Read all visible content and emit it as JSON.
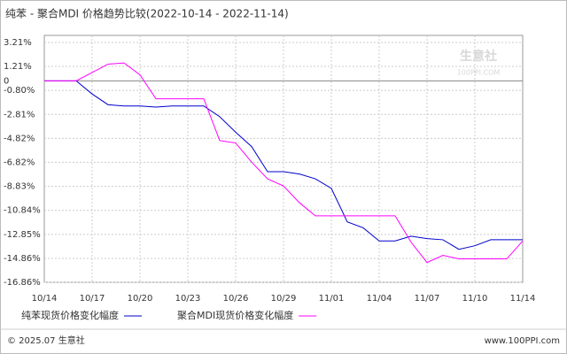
{
  "chart_data": {
    "type": "line",
    "title": "纯苯 - 聚合MDI 价格趋势比较(2022-10-14 - 2022-11-14)",
    "categories": [
      "10/14",
      null,
      null,
      "10/17",
      null,
      null,
      "10/20",
      null,
      null,
      "10/23",
      null,
      null,
      "10/26",
      null,
      null,
      "10/29",
      null,
      null,
      "11/01",
      null,
      null,
      "11/04",
      null,
      null,
      "11/07",
      null,
      null,
      "11/10",
      null,
      null,
      "11/14"
    ],
    "series": [
      {
        "name": "纯苯现货价格变化幅度",
        "color": "#0000cc",
        "values": [
          0,
          0,
          0,
          -1.1,
          -2.0,
          -2.1,
          -2.1,
          -2.2,
          -2.1,
          -2.1,
          -2.1,
          -3.0,
          -4.3,
          -5.5,
          -7.6,
          -7.6,
          -7.8,
          -8.2,
          -9.0,
          -11.8,
          -12.3,
          -13.4,
          -13.4,
          -13.0,
          -13.2,
          -13.3,
          -14.1,
          -13.8,
          -13.3,
          -13.3,
          -13.3
        ]
      },
      {
        "name": "聚合MDI现货价格变化幅度",
        "color": "#ff00ff",
        "values": [
          0,
          0,
          0,
          0.7,
          1.4,
          1.5,
          0.5,
          -1.5,
          -1.5,
          -1.5,
          -1.5,
          -5.0,
          -5.2,
          -6.8,
          -8.2,
          -8.8,
          -10.2,
          -11.3,
          -11.3,
          -11.3,
          -11.3,
          -11.3,
          -11.3,
          -13.5,
          -15.2,
          -14.6,
          -14.9,
          -14.9,
          -14.9,
          -14.9,
          -13.4
        ]
      }
    ],
    "ylim": [
      -16.86,
      3.21
    ],
    "yticks": [
      {
        "value": 3.21,
        "label": "3.21%"
      },
      {
        "value": 1.21,
        "label": "1.21%"
      },
      0,
      {
        "value": -0.8,
        "label": "-0.80%"
      },
      {
        "value": -2.81,
        "label": "-2.81%"
      },
      {
        "value": -4.82,
        "label": "-4.82%"
      },
      {
        "value": -6.82,
        "label": "-6.82%"
      },
      {
        "value": -8.83,
        "label": "-8.83%"
      },
      {
        "value": -10.84,
        "label": "-10.84%"
      },
      {
        "value": -12.85,
        "label": "-12.85%"
      },
      {
        "value": -14.86,
        "label": "-14.86%"
      },
      {
        "value": -16.86,
        "label": "-16.86%"
      }
    ],
    "grid": true,
    "watermark": [
      "生意社",
      "100PPI.COM"
    ],
    "footer": {
      "left": "© 2025.07 生意社",
      "right": "www.100PPI.com"
    }
  }
}
